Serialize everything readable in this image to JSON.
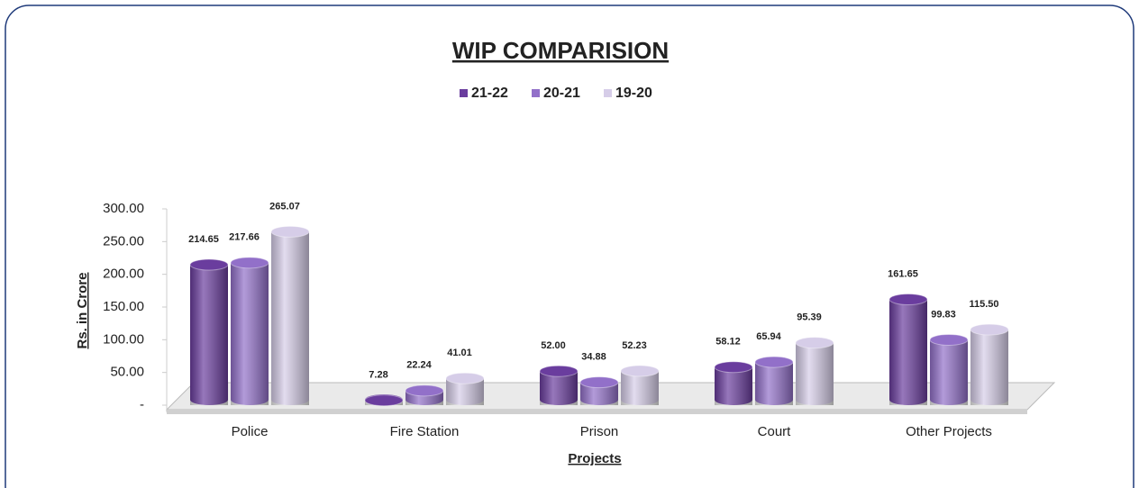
{
  "chart_data": {
    "type": "bar",
    "title": "WIP  COMPARISION",
    "y_label": "Rs. in Crore",
    "x_label": "Projects",
    "categories": [
      "Police",
      "Fire Station",
      "Prison",
      "Court",
      "Other Projects"
    ],
    "series": [
      {
        "name": "21-22",
        "color": "#6a3d9e",
        "values": [
          214.65,
          7.28,
          52.0,
          58.12,
          161.65
        ],
        "value_labels": [
          "214.65",
          "7.28",
          "52.00",
          "58.12",
          "161.65"
        ]
      },
      {
        "name": "20-21",
        "color": "#9270c9",
        "values": [
          217.66,
          22.24,
          34.88,
          65.94,
          99.83
        ],
        "value_labels": [
          "217.66",
          "22.24",
          "34.88",
          "65.94",
          "99.83"
        ]
      },
      {
        "name": "19-20",
        "color": "#d6cde8",
        "values": [
          265.07,
          41.01,
          52.23,
          95.39,
          115.5
        ],
        "value_labels": [
          "265.07",
          "41.01",
          "52.23",
          "95.39",
          "115.50"
        ]
      }
    ],
    "ylim": [
      0,
      300
    ],
    "yticks": [
      {
        "value": 0,
        "label": "-"
      },
      {
        "value": 50,
        "label": "50.00"
      },
      {
        "value": 100,
        "label": "100.00"
      },
      {
        "value": 150,
        "label": "150.00"
      },
      {
        "value": 200,
        "label": "200.00"
      },
      {
        "value": 250,
        "label": "250.00"
      },
      {
        "value": 300,
        "label": "300.00"
      }
    ],
    "legend": "top"
  }
}
